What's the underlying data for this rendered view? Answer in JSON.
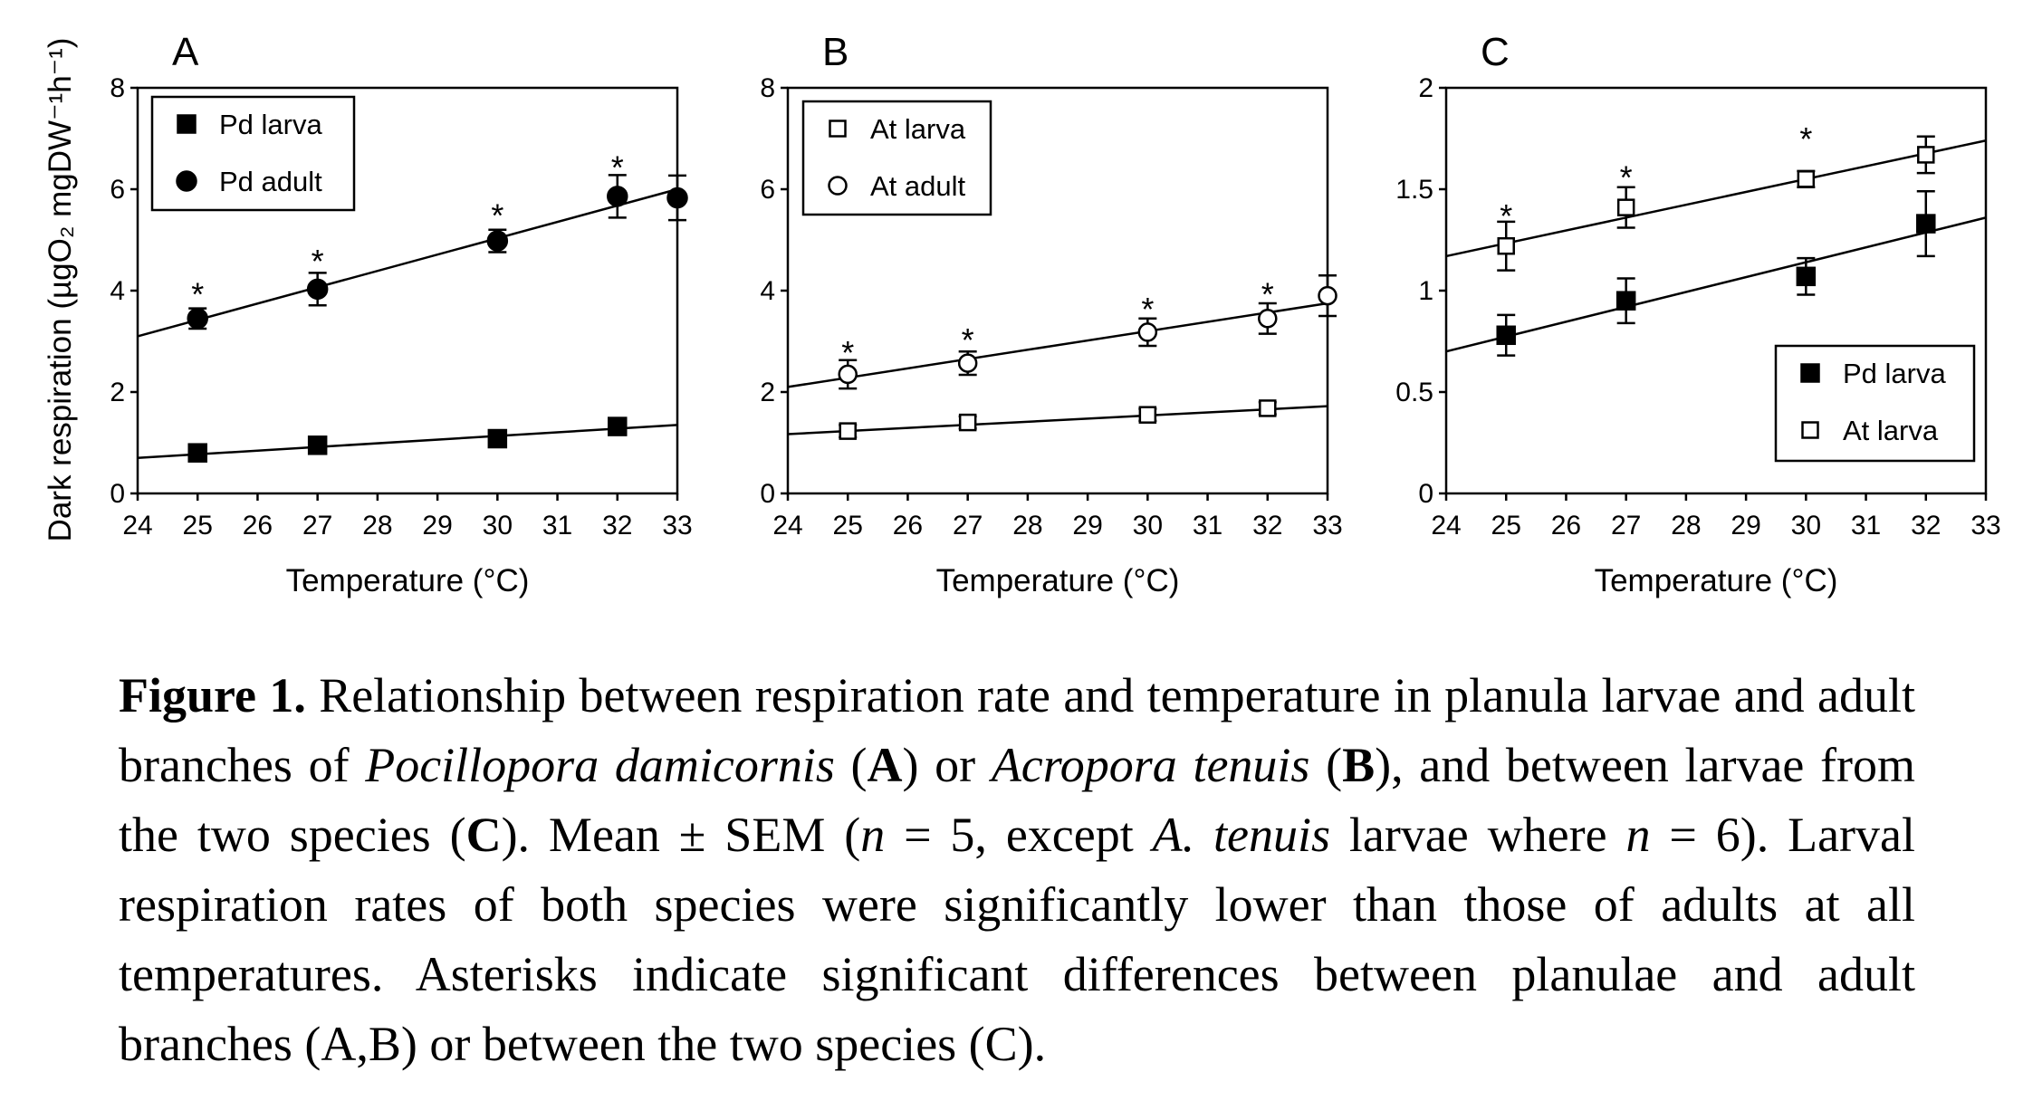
{
  "ylabel": "Dark respiration (µgO₂ mgDW⁻¹h⁻¹)",
  "chart_data": [
    {
      "type": "scatter",
      "panel_letter": "A",
      "xlabel": "Temperature (°C)",
      "xlim": [
        24,
        33
      ],
      "ylim": [
        0,
        8
      ],
      "x_ticks": [
        24,
        25,
        26,
        27,
        28,
        29,
        30,
        31,
        32,
        33
      ],
      "y_ticks": [
        0,
        2,
        4,
        6,
        8
      ],
      "legend_position": "top-left",
      "series": [
        {
          "name": "Pd larva",
          "marker": "square-filled",
          "x": [
            25,
            27,
            30,
            32
          ],
          "values": [
            0.8,
            0.95,
            1.08,
            1.32
          ],
          "errors": [
            0.08,
            0.08,
            0.1,
            0.1
          ],
          "trend": [
            0.7,
            1.35
          ]
        },
        {
          "name": "Pd adult",
          "marker": "circle-filled",
          "x": [
            25,
            27,
            30,
            32,
            33
          ],
          "values": [
            3.45,
            4.03,
            4.98,
            5.86,
            5.83
          ],
          "errors": [
            0.2,
            0.32,
            0.22,
            0.42,
            0.44
          ],
          "trend": [
            3.1,
            6.0
          ]
        }
      ],
      "asterisks": [
        {
          "x": 25,
          "y": 4.1
        },
        {
          "x": 27,
          "y": 4.75
        },
        {
          "x": 30,
          "y": 5.65
        },
        {
          "x": 32,
          "y": 6.6
        }
      ]
    },
    {
      "type": "scatter",
      "panel_letter": "B",
      "xlabel": "Temperature (°C)",
      "xlim": [
        24,
        33
      ],
      "ylim": [
        0,
        8
      ],
      "x_ticks": [
        24,
        25,
        26,
        27,
        28,
        29,
        30,
        31,
        32,
        33
      ],
      "y_ticks": [
        0,
        2,
        4,
        6,
        8
      ],
      "legend_position": "top-left",
      "series": [
        {
          "name": "At larva",
          "marker": "square-open",
          "x": [
            25,
            27,
            30,
            32
          ],
          "values": [
            1.23,
            1.4,
            1.55,
            1.68
          ],
          "errors": [
            0.12,
            0.12,
            0.12,
            0.12
          ],
          "trend": [
            1.17,
            1.72
          ]
        },
        {
          "name": "At adult",
          "marker": "circle-open",
          "x": [
            25,
            27,
            30,
            32,
            33
          ],
          "values": [
            2.35,
            2.57,
            3.18,
            3.45,
            3.9
          ],
          "errors": [
            0.28,
            0.23,
            0.27,
            0.3,
            0.4
          ],
          "trend": [
            2.1,
            3.75
          ]
        }
      ],
      "asterisks": [
        {
          "x": 25,
          "y": 2.95
        },
        {
          "x": 27,
          "y": 3.2
        },
        {
          "x": 30,
          "y": 3.8
        },
        {
          "x": 32,
          "y": 4.1
        }
      ]
    },
    {
      "type": "scatter",
      "panel_letter": "C",
      "xlabel": "Temperature (°C)",
      "xlim": [
        24,
        33
      ],
      "ylim": [
        0,
        2
      ],
      "x_ticks": [
        24,
        25,
        26,
        27,
        28,
        29,
        30,
        31,
        32,
        33
      ],
      "y_ticks": [
        "0",
        "0.5",
        "1",
        "1.5",
        "2"
      ],
      "legend_position": "bottom-right",
      "series": [
        {
          "name": "Pd larva",
          "marker": "square-filled",
          "x": [
            25,
            27,
            30,
            32
          ],
          "values": [
            0.78,
            0.95,
            1.07,
            1.33
          ],
          "errors": [
            0.1,
            0.11,
            0.09,
            0.16
          ],
          "trend": [
            0.7,
            1.36
          ]
        },
        {
          "name": "At larva",
          "marker": "square-open",
          "x": [
            25,
            27,
            30,
            32
          ],
          "values": [
            1.22,
            1.41,
            1.55,
            1.67
          ],
          "errors": [
            0.12,
            0.1,
            0.04,
            0.09
          ],
          "trend": [
            1.17,
            1.74
          ]
        }
      ],
      "asterisks": [
        {
          "x": 25,
          "y": 1.41
        },
        {
          "x": 27,
          "y": 1.6
        },
        {
          "x": 30,
          "y": 1.79
        }
      ]
    }
  ],
  "caption": {
    "figure_label": "Figure 1.",
    "part1": " Relationship between respiration rate and temperature in planula larvae and adult branches of ",
    "species_a": "Pocillopora damicornis",
    "part2": " (",
    "ref_a": "A",
    "part3": ") or ",
    "species_b": "Acropora tenuis",
    "part4": " (",
    "ref_b": "B",
    "part5": "), and between larvae from the two species (",
    "ref_c": "C",
    "part6": "). Mean ± SEM (",
    "n1": "n",
    "part7": " = 5, except ",
    "species_short": "A. tenuis",
    "part8": " larvae where ",
    "n2": "n",
    "part9": " = 6). Larval respiration rates of both species were significantly lower than those of adults at all temperatures. Asterisks indicate significant differences between planulae and adult branches (A,B) or between the two species (C)."
  }
}
